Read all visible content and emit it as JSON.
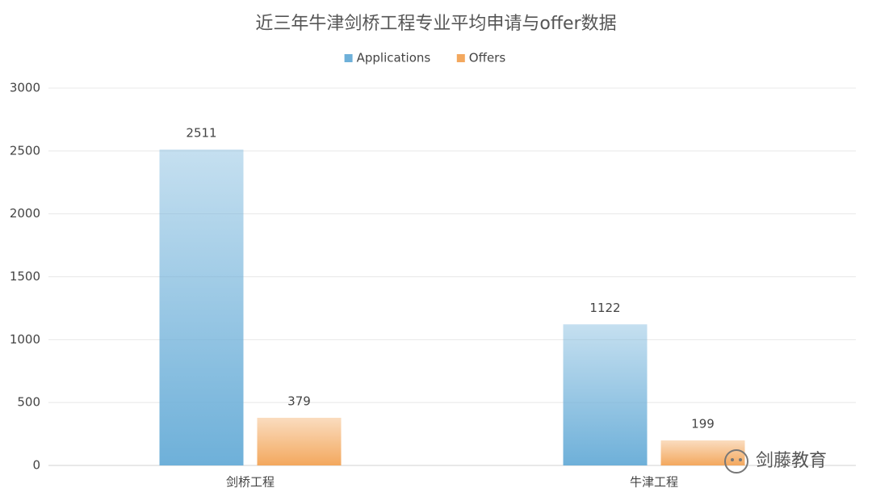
{
  "chart_data": {
    "type": "bar",
    "title": "近三年牛津剑桥工程专业平均申请与offer数据",
    "categories": [
      "剑桥工程",
      "牛津工程"
    ],
    "series": [
      {
        "name": "Applications",
        "color": "#6eb0d9",
        "values": [
          2511,
          1122
        ]
      },
      {
        "name": "Offers",
        "color": "#f3a85e",
        "values": [
          379,
          199
        ]
      }
    ],
    "ylim": [
      0,
      3000
    ],
    "yticks": [
      0,
      500,
      1000,
      1500,
      2000,
      2500,
      3000
    ],
    "grid": true,
    "legend": "top",
    "brand": "剑藤教育"
  }
}
